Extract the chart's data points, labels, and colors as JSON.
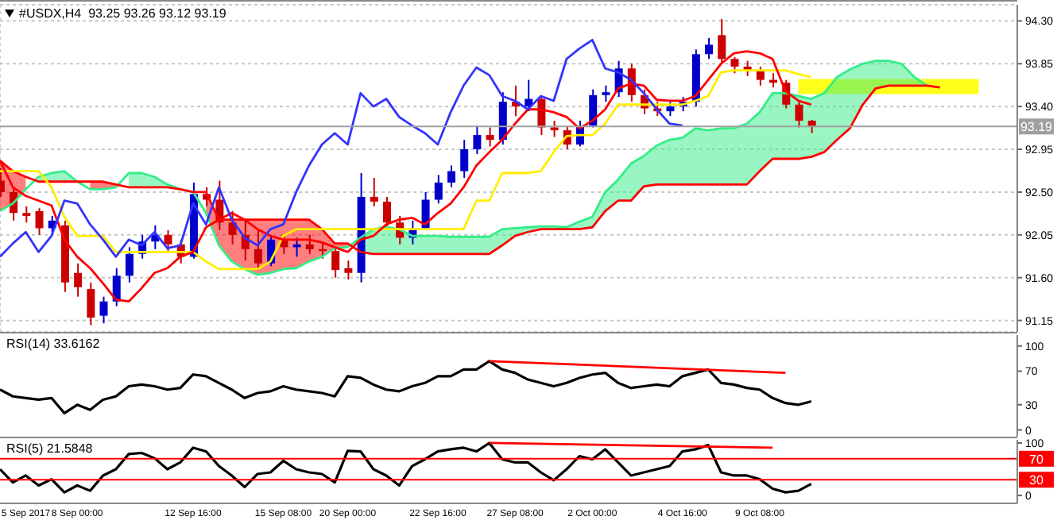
{
  "chart_data": [
    {
      "type": "candlestick",
      "title": "#USDX,H4  93.25 93.26 93.12 93.19",
      "categories": [
        null,
        null,
        null,
        null,
        null,
        null,
        null,
        null,
        null,
        null,
        null,
        null,
        null,
        null,
        null,
        null,
        null,
        null,
        null,
        null,
        null,
        null,
        null,
        null,
        null,
        null,
        null,
        null,
        null,
        null,
        null,
        null,
        null,
        null,
        null,
        null,
        null,
        null,
        null,
        null,
        null,
        null,
        null,
        null,
        null,
        null,
        null,
        null,
        null,
        null,
        null,
        null,
        null,
        null,
        null,
        null,
        null,
        null,
        null,
        null,
        null,
        null,
        null,
        null,
        null,
        null,
        null,
        null,
        null,
        null,
        null,
        null,
        null,
        null,
        null,
        null,
        null,
        null,
        null,
        null
      ],
      "ohlc": [
        [
          92.62,
          92.75,
          92.45,
          92.5
        ],
        [
          92.5,
          92.55,
          92.2,
          92.28
        ],
        [
          92.28,
          92.35,
          92.18,
          92.25
        ],
        [
          92.3,
          92.33,
          92.05,
          92.12
        ],
        [
          92.12,
          92.25,
          92.08,
          92.2
        ],
        [
          92.15,
          92.2,
          91.45,
          91.55
        ],
        [
          91.65,
          91.75,
          91.4,
          91.5
        ],
        [
          91.48,
          91.55,
          91.1,
          91.18
        ],
        [
          91.2,
          91.4,
          91.12,
          91.35
        ],
        [
          91.35,
          91.7,
          91.3,
          91.62
        ],
        [
          91.62,
          91.92,
          91.55,
          91.85
        ],
        [
          91.85,
          92.05,
          91.8,
          91.98
        ],
        [
          91.98,
          92.15,
          91.9,
          92.05
        ],
        [
          92.05,
          92.1,
          91.88,
          91.95
        ],
        [
          91.95,
          92.0,
          91.75,
          91.82
        ],
        [
          91.82,
          92.6,
          91.8,
          92.48
        ],
        [
          92.48,
          92.55,
          92.35,
          92.42
        ],
        [
          92.42,
          92.62,
          92.1,
          92.18
        ],
        [
          92.18,
          92.3,
          91.95,
          92.05
        ],
        [
          92.05,
          92.2,
          91.78,
          91.9
        ],
        [
          91.9,
          92.1,
          91.68,
          91.75
        ],
        [
          91.75,
          92.05,
          91.72,
          92.0
        ],
        [
          92.0,
          92.05,
          91.85,
          91.92
        ],
        [
          91.92,
          92.02,
          91.82,
          91.95
        ],
        [
          91.95,
          92.05,
          91.85,
          91.9
        ],
        [
          91.9,
          91.98,
          91.8,
          91.88
        ],
        [
          91.88,
          91.92,
          91.6,
          91.68
        ],
        [
          91.7,
          91.78,
          91.58,
          91.65
        ],
        [
          91.65,
          92.7,
          91.55,
          92.45
        ],
        [
          92.45,
          92.65,
          92.35,
          92.4
        ],
        [
          92.4,
          92.45,
          92.1,
          92.18
        ],
        [
          92.18,
          92.25,
          91.95,
          92.02
        ],
        [
          92.02,
          92.2,
          91.95,
          92.12
        ],
        [
          92.12,
          92.5,
          92.1,
          92.42
        ],
        [
          92.42,
          92.68,
          92.38,
          92.6
        ],
        [
          92.6,
          92.78,
          92.55,
          92.72
        ],
        [
          92.72,
          93.05,
          92.65,
          92.95
        ],
        [
          92.95,
          93.2,
          92.9,
          93.1
        ],
        [
          93.1,
          93.18,
          92.98,
          93.05
        ],
        [
          93.05,
          93.55,
          93.0,
          93.45
        ],
        [
          93.45,
          93.62,
          93.3,
          93.4
        ],
        [
          93.4,
          93.68,
          93.35,
          93.48
        ],
        [
          93.48,
          93.5,
          93.1,
          93.18
        ],
        [
          93.18,
          93.25,
          93.08,
          93.15
        ],
        [
          93.15,
          93.2,
          92.95,
          93.0
        ],
        [
          93.0,
          93.25,
          92.98,
          93.2
        ],
        [
          93.2,
          93.58,
          93.18,
          93.52
        ],
        [
          93.52,
          93.62,
          93.45,
          93.55
        ],
        [
          93.55,
          93.88,
          93.5,
          93.8
        ],
        [
          93.8,
          93.85,
          93.45,
          93.52
        ],
        [
          93.52,
          93.58,
          93.32,
          93.38
        ],
        [
          93.38,
          93.45,
          93.3,
          93.35
        ],
        [
          93.35,
          93.45,
          93.3,
          93.4
        ],
        [
          93.4,
          93.5,
          93.35,
          93.45
        ],
        [
          93.45,
          94.0,
          93.4,
          93.95
        ],
        [
          93.95,
          94.12,
          93.9,
          94.05
        ],
        [
          94.15,
          94.32,
          93.85,
          93.9
        ],
        [
          93.9,
          93.92,
          93.75,
          93.82
        ],
        [
          93.82,
          93.88,
          93.72,
          93.78
        ],
        [
          93.78,
          93.82,
          93.62,
          93.68
        ],
        [
          93.68,
          93.75,
          93.6,
          93.65
        ],
        [
          93.65,
          93.68,
          93.38,
          93.42
        ],
        [
          93.42,
          93.45,
          93.18,
          93.25
        ],
        [
          93.25,
          93.26,
          93.12,
          93.19
        ],
        null,
        null,
        null,
        null,
        null,
        null,
        null,
        null,
        null,
        null,
        null,
        null,
        null,
        null,
        null,
        null
      ],
      "colors": [
        "#cc0000",
        "#cc0000",
        "#cc0000",
        "#cc0000",
        "#0000cc",
        "#cc0000",
        "#cc0000",
        "#cc0000",
        "#0000cc",
        "#0000cc",
        "#0000cc",
        "#0000cc",
        "#0000cc",
        "#cc0000",
        "#cc0000",
        "#0000cc",
        "#cc0000",
        "#cc0000",
        "#cc0000",
        "#cc0000",
        "#cc0000",
        "#0000cc",
        "#cc0000",
        "#0000cc",
        "#cc0000",
        "#cc0000",
        "#cc0000",
        "#cc0000",
        "#0000cc",
        "#cc0000",
        "#cc0000",
        "#cc0000",
        "#0000cc",
        "#0000cc",
        "#0000cc",
        "#0000cc",
        "#0000cc",
        "#0000cc",
        "#cc0000",
        "#0000cc",
        "#cc0000",
        "#0000cc",
        "#cc0000",
        "#cc0000",
        "#cc0000",
        "#0000cc",
        "#0000cc",
        "#0000cc",
        "#0000cc",
        "#cc0000",
        "#cc0000",
        "#cc0000",
        "#0000cc",
        "#0000cc",
        "#0000cc",
        "#0000cc",
        "#cc0000",
        "#cc0000",
        "#cc0000",
        "#cc0000",
        "#cc0000",
        "#cc0000",
        "#cc0000",
        "#cc0000",
        null,
        null,
        null,
        null,
        null,
        null,
        null,
        null,
        null,
        null,
        null,
        null,
        null,
        null,
        null,
        null
      ],
      "series": [
        {
          "type": "line",
          "color": "#33ee88",
          "values": [
            92.3,
            92.38,
            92.53,
            92.66,
            92.7,
            92.72,
            92.61,
            92.53,
            92.53,
            92.55,
            92.7,
            92.7,
            92.66,
            92.58,
            92.53,
            92.5,
            92.28,
            91.94,
            91.77,
            91.69,
            91.63,
            91.65,
            91.69,
            91.7,
            91.77,
            91.82,
            91.91,
            91.92,
            92.02,
            92.11,
            92.13,
            92.11,
            92.04,
            92.04,
            92.04,
            92.03,
            92.03,
            92.03,
            92.03,
            92.11,
            92.12,
            92.13,
            92.14,
            92.14,
            92.13,
            92.19,
            92.24,
            92.5,
            92.63,
            92.8,
            92.88,
            92.99,
            93.05,
            93.07,
            93.17,
            93.15,
            93.17,
            93.17,
            93.22,
            93.34,
            93.54,
            93.54,
            93.51,
            93.48,
            93.54,
            93.71,
            93.79,
            93.85,
            93.88,
            93.88,
            93.85,
            93.71,
            93.62,
            null,
            null,
            null,
            null,
            null,
            null,
            null
          ],
          "lower": [
            null,
            null,
            null,
            92.61,
            92.61,
            92.61,
            92.61,
            null,
            null,
            null,
            92.55,
            92.55,
            92.55,
            92.55,
            92.53,
            92.5,
            null,
            null,
            null,
            null,
            null,
            null,
            null,
            null,
            null,
            null,
            null,
            null,
            91.87,
            91.85,
            91.85,
            91.85,
            91.85,
            91.85,
            91.85,
            91.85,
            91.85,
            91.85,
            91.85,
            91.94,
            92.04,
            92.08,
            92.11,
            92.11,
            92.11,
            92.11,
            92.13,
            92.3,
            92.41,
            92.41,
            92.56,
            92.58,
            92.58,
            92.58,
            92.58,
            92.58,
            92.58,
            92.58,
            92.58,
            92.72,
            92.85,
            92.85,
            92.85,
            92.87,
            92.92,
            93.05,
            93.17,
            93.42,
            93.59,
            93.62,
            93.62,
            93.62,
            93.62,
            null,
            null,
            null,
            null,
            null,
            null,
            null
          ],
          "upper": [
            null,
            null,
            null,
            92.66,
            92.7,
            92.72,
            92.61,
            null,
            null,
            null,
            92.7,
            92.7,
            92.66,
            92.58,
            92.53,
            92.5,
            null,
            null,
            null,
            null,
            null,
            null,
            null,
            null,
            null,
            null,
            null,
            null,
            92.02,
            92.11,
            92.13,
            92.11,
            92.04,
            92.04,
            92.04,
            92.03,
            92.03,
            92.03,
            92.03,
            92.11,
            92.12,
            92.13,
            92.14,
            92.14,
            92.13,
            92.19,
            92.24,
            92.5,
            92.63,
            92.8,
            92.88,
            92.99,
            93.05,
            93.07,
            93.17,
            93.15,
            93.17,
            93.17,
            93.22,
            93.34,
            93.54,
            93.54,
            93.51,
            93.48,
            93.54,
            93.71,
            93.79,
            93.85,
            93.88,
            93.88,
            93.85,
            93.71,
            93.62,
            null,
            null,
            null,
            null,
            null,
            null,
            null
          ]
        },
        {
          "type": "line",
          "color": "#ff0000",
          "values": [
            92.83,
            92.72,
            92.66,
            92.61,
            92.61,
            92.61,
            92.61,
            92.61,
            92.61,
            92.58,
            92.55,
            92.55,
            92.55,
            92.55,
            92.53,
            92.5,
            92.5,
            92.21,
            92.21,
            92.21,
            92.21,
            92.21,
            92.21,
            92.21,
            92.21,
            92.11,
            91.96,
            91.96,
            91.87,
            91.85,
            91.85,
            91.85,
            91.85,
            91.85,
            91.85,
            91.85,
            91.85,
            91.85,
            91.85,
            91.94,
            92.04,
            92.08,
            92.11,
            92.11,
            92.11,
            92.11,
            92.13,
            92.3,
            92.41,
            92.41,
            92.56,
            92.58,
            92.58,
            92.58,
            92.58,
            92.58,
            92.58,
            92.58,
            92.58,
            92.72,
            92.85,
            92.85,
            92.85,
            92.87,
            92.92,
            93.05,
            93.17,
            93.42,
            93.59,
            93.62,
            93.62,
            93.62,
            93.62,
            93.6,
            null,
            null,
            null,
            null,
            null,
            null
          ],
          "lower": [
            92.3,
            92.38,
            92.53,
            null,
            null,
            null,
            null,
            92.53,
            92.53,
            92.55,
            null,
            null,
            null,
            null,
            null,
            null,
            92.28,
            91.94,
            91.77,
            91.69,
            91.63,
            91.65,
            91.69,
            91.7,
            91.77,
            91.82,
            91.91,
            91.92,
            null,
            null,
            null,
            null,
            null,
            null,
            null,
            null,
            null,
            null,
            null,
            null,
            null,
            null,
            null,
            null,
            null,
            null,
            null,
            null,
            null,
            null,
            null,
            null,
            null,
            null,
            null,
            null,
            null,
            null,
            null,
            null,
            null,
            null,
            null,
            null,
            null,
            null,
            null,
            null,
            null,
            null,
            null,
            null,
            null,
            null,
            null,
            null,
            null,
            null,
            null,
            null
          ],
          "upper": [
            92.83,
            92.72,
            92.66,
            null,
            null,
            null,
            null,
            92.61,
            92.61,
            92.58,
            null,
            null,
            null,
            null,
            null,
            null,
            92.5,
            92.21,
            92.21,
            92.21,
            92.21,
            92.21,
            92.21,
            92.21,
            92.21,
            92.11,
            91.96,
            91.96,
            null,
            null,
            null,
            null,
            null,
            null,
            null,
            null,
            null,
            null,
            null,
            null,
            null,
            null,
            null,
            null,
            null,
            null,
            null,
            null,
            null,
            null,
            null,
            null,
            null,
            null,
            null,
            null,
            null,
            null,
            null,
            null,
            null,
            null,
            null,
            null,
            null,
            null,
            null,
            null,
            null,
            null,
            null,
            null,
            null,
            null,
            null,
            null,
            null,
            null,
            null,
            null
          ]
        },
        {
          "type": "line",
          "color": "#ffee00",
          "values": [
            92.72,
            92.72,
            92.72,
            92.72,
            92.55,
            92.24,
            92.04,
            92.04,
            92.04,
            91.87,
            91.87,
            91.87,
            91.87,
            91.87,
            91.87,
            91.87,
            91.77,
            91.69,
            91.69,
            91.69,
            91.69,
            91.77,
            92.04,
            92.11,
            92.11,
            92.11,
            92.11,
            92.11,
            92.11,
            92.11,
            92.11,
            92.11,
            92.11,
            92.11,
            92.11,
            92.11,
            92.11,
            92.41,
            92.41,
            92.7,
            92.7,
            92.7,
            92.72,
            92.92,
            93.09,
            93.1,
            93.1,
            93.22,
            93.42,
            93.42,
            93.42,
            93.42,
            93.42,
            93.42,
            93.46,
            93.51,
            93.76,
            93.78,
            93.78,
            93.78,
            93.78,
            93.78,
            93.74,
            93.71,
            null,
            null,
            null,
            null,
            null,
            null,
            null,
            null,
            null,
            null,
            null,
            null,
            null,
            null,
            null,
            null
          ]
        },
        {
          "type": "line",
          "color": "#ff0000",
          "values": [
            92.83,
            92.55,
            92.46,
            92.41,
            92.36,
            92.0,
            91.82,
            91.7,
            91.54,
            91.37,
            91.35,
            91.49,
            91.65,
            91.7,
            91.82,
            91.87,
            92.13,
            92.21,
            92.28,
            92.21,
            92.11,
            92.04,
            92.0,
            92.0,
            92.0,
            91.97,
            91.92,
            91.87,
            92.0,
            92.04,
            92.16,
            92.21,
            92.23,
            92.16,
            92.28,
            92.38,
            92.55,
            92.78,
            92.92,
            93.05,
            93.22,
            93.37,
            93.37,
            93.34,
            93.29,
            93.17,
            93.25,
            93.37,
            93.59,
            93.64,
            93.62,
            93.47,
            93.46,
            93.46,
            93.51,
            93.68,
            93.85,
            93.96,
            93.98,
            93.96,
            93.9,
            93.56,
            93.46,
            93.42,
            null,
            null,
            null,
            null,
            null,
            null,
            null,
            null,
            null,
            null,
            null,
            null,
            null,
            null,
            null,
            null
          ]
        },
        {
          "type": "line",
          "color": "#3333ff",
          "values": [
            91.82,
            91.96,
            92.08,
            91.87,
            92.04,
            92.41,
            92.38,
            92.16,
            92.0,
            91.82,
            92.0,
            91.94,
            92.08,
            91.91,
            91.94,
            92.38,
            92.16,
            92.55,
            92.21,
            92.02,
            91.94,
            92.11,
            92.16,
            92.5,
            92.78,
            93.0,
            93.12,
            93.0,
            93.54,
            93.4,
            93.48,
            93.29,
            93.2,
            93.12,
            93.0,
            93.34,
            93.62,
            93.81,
            93.73,
            93.51,
            93.46,
            93.37,
            93.51,
            93.46,
            93.9,
            94.01,
            94.1,
            93.8,
            93.76,
            93.68,
            93.54,
            93.37,
            93.22,
            93.2,
            null,
            null,
            null,
            null,
            null,
            null,
            null,
            null,
            null,
            null,
            null,
            null,
            null,
            null,
            null,
            null,
            null,
            null,
            null,
            null,
            null,
            null,
            null,
            null,
            null,
            null
          ]
        }
      ],
      "ylim": [
        91.03,
        94.47
      ],
      "yticks": [
        91.15,
        {
          "value": 91.6,
          "label": "91.60"
        },
        92.05,
        {
          "value": 92.5,
          "label": "92.50"
        },
        92.95,
        {
          "value": 93.4,
          "label": "93.40"
        },
        93.85,
        {
          "value": 94.3,
          "label": "94.30"
        }
      ],
      "grid": true,
      "tick_labels": "y",
      "marker": "none",
      "ref_lines": [
        {
          "axis": "y",
          "value": 93.19,
          "label": "93.19",
          "color": "#a0a0a0"
        }
      ],
      "bands": [
        {
          "axis": "y",
          "from": 93.53,
          "to": 93.69,
          "color": "#ffff00"
        }
      ]
    },
    {
      "type": "line",
      "title": "RSI(14) 33.6162",
      "categories": [
        null,
        null,
        null,
        null,
        null,
        null,
        null,
        null,
        null,
        null,
        null,
        null,
        null,
        null,
        null,
        null,
        null,
        null,
        null,
        null,
        null,
        null,
        null,
        null,
        null,
        null,
        null,
        null,
        null,
        null,
        null,
        null,
        null,
        null,
        null,
        null,
        null,
        null,
        null,
        null,
        null,
        null,
        null,
        null,
        null,
        null,
        null,
        null,
        null,
        null,
        null,
        null,
        null,
        null,
        null,
        null,
        null,
        null,
        null,
        null,
        null,
        null,
        null,
        null,
        null,
        null,
        null,
        null,
        null,
        null,
        null,
        null,
        null,
        null,
        null,
        null,
        null,
        null,
        null,
        null
      ],
      "series": [
        {
          "color": "#000000",
          "values": [
            48,
            40,
            38,
            36,
            38,
            20,
            30,
            24,
            36,
            40,
            52,
            54,
            52,
            48,
            50,
            66,
            64,
            56,
            48,
            38,
            44,
            46,
            52,
            48,
            46,
            44,
            40,
            64,
            62,
            54,
            48,
            46,
            52,
            56,
            64,
            64,
            72,
            72,
            82,
            72,
            68,
            60,
            56,
            52,
            56,
            62,
            66,
            68,
            56,
            50,
            52,
            54,
            52,
            64,
            68,
            72,
            56,
            54,
            50,
            48,
            38,
            32,
            30,
            34,
            null,
            null,
            null,
            null,
            null,
            null,
            null,
            null,
            null,
            null,
            null,
            null,
            null,
            null,
            null,
            null
          ]
        },
        {
          "color": "#ff0000",
          "values": [
            null,
            null,
            null,
            null,
            null,
            null,
            null,
            null,
            null,
            null,
            null,
            null,
            null,
            null,
            null,
            null,
            null,
            null,
            null,
            null,
            null,
            null,
            null,
            null,
            null,
            null,
            null,
            null,
            null,
            null,
            null,
            null,
            null,
            null,
            null,
            null,
            null,
            null,
            82,
            null,
            null,
            null,
            null,
            null,
            null,
            null,
            null,
            null,
            null,
            null,
            null,
            null,
            null,
            null,
            null,
            null,
            null,
            null,
            null,
            null,
            null,
            68,
            null,
            null,
            null,
            null,
            null,
            null,
            null,
            null,
            null,
            null,
            null,
            null,
            null,
            null,
            null,
            null,
            null,
            null
          ]
        }
      ],
      "ylim": [
        -8,
        113
      ],
      "yticks": [
        0,
        30,
        70,
        100
      ],
      "tick_labels": "y",
      "marker": "none"
    },
    {
      "type": "line",
      "title": "RSI(5) 21.5848",
      "categories": [
        null,
        null,
        "5 Sep 2017",
        null,
        null,
        null,
        "8 Sep 00:00",
        null,
        null,
        null,
        null,
        null,
        null,
        null,
        null,
        "12 Sep 16:00",
        null,
        null,
        null,
        null,
        null,
        null,
        "15 Sep 08:00",
        null,
        null,
        null,
        null,
        "20 Sep 00:00",
        null,
        null,
        null,
        null,
        null,
        null,
        "22 Sep 16:00",
        null,
        null,
        null,
        null,
        null,
        "27 Sep 08:00",
        null,
        null,
        null,
        null,
        null,
        "2 Oct 00:00",
        null,
        null,
        null,
        null,
        null,
        null,
        "4 Oct 16:00",
        null,
        null,
        null,
        null,
        null,
        "9 Oct 08:00",
        null,
        null,
        null,
        null,
        null,
        null,
        null,
        null,
        null,
        null,
        null,
        null,
        null,
        null,
        null,
        null,
        null,
        null,
        null,
        null
      ],
      "series": [
        {
          "color": "#000000",
          "values": [
            50,
            25,
            38,
            19,
            31,
            6,
            19,
            9,
            38,
            50,
            79,
            81,
            71,
            50,
            63,
            91,
            84,
            56,
            38,
            16,
            41,
            44,
            66,
            50,
            44,
            41,
            25,
            85,
            84,
            50,
            38,
            19,
            56,
            69,
            84,
            88,
            91,
            84,
            100,
            69,
            63,
            63,
            44,
            29,
            50,
            75,
            69,
            88,
            63,
            38,
            44,
            50,
            56,
            84,
            88,
            96,
            44,
            38,
            38,
            31,
            13,
            6,
            9,
            22,
            null,
            null,
            null,
            null,
            null,
            null,
            null,
            null,
            null,
            null,
            null,
            null,
            null,
            null,
            null,
            null
          ]
        },
        {
          "color": "#ff0000",
          "values": [
            null,
            null,
            null,
            null,
            null,
            null,
            null,
            null,
            null,
            null,
            null,
            null,
            null,
            null,
            null,
            null,
            null,
            null,
            null,
            null,
            null,
            null,
            null,
            null,
            null,
            null,
            null,
            null,
            null,
            null,
            null,
            null,
            null,
            null,
            null,
            null,
            null,
            null,
            100,
            null,
            null,
            null,
            null,
            null,
            null,
            null,
            null,
            null,
            null,
            null,
            null,
            null,
            null,
            null,
            null,
            null,
            null,
            null,
            null,
            null,
            91,
            null,
            null,
            null,
            null,
            null,
            null,
            null,
            null,
            null,
            null,
            null,
            null,
            null,
            null,
            null,
            null,
            null,
            null,
            null
          ]
        }
      ],
      "ylim": [
        -15,
        106
      ],
      "yticks": [
        0,
        100
      ],
      "marker": "none",
      "ref_lines": [
        {
          "axis": "y",
          "value": 70,
          "label": "70",
          "color": "#ff0000"
        },
        {
          "axis": "y",
          "value": 30,
          "label": "30",
          "color": "#ff0000"
        }
      ]
    }
  ]
}
